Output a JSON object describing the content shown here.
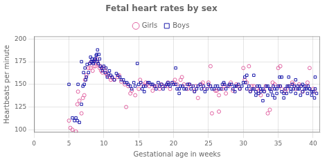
{
  "chart_data": {
    "type": "scatter",
    "title": "Fetal heart rates by sex",
    "xlabel": "Gestational age in weeks",
    "ylabel": "Heartbeats per minute",
    "xlim": [
      0,
      41
    ],
    "ylim": [
      97,
      203
    ],
    "xticks": [
      0,
      5,
      10,
      15,
      20,
      25,
      30,
      35,
      40
    ],
    "yticks": [
      100,
      125,
      150,
      175,
      200
    ],
    "grid": true,
    "legend": "top",
    "series": [
      {
        "name": "Boys",
        "color": "#1a1aaa",
        "marker": "square",
        "values": [
          [
            5.0,
            150
          ],
          [
            5.5,
            113
          ],
          [
            5.8,
            110
          ],
          [
            6.0,
            113
          ],
          [
            6.2,
            110
          ],
          [
            6.5,
            108
          ],
          [
            6.8,
            128
          ],
          [
            7.0,
            148
          ],
          [
            7.2,
            150
          ],
          [
            7.4,
            155
          ],
          [
            7.5,
            158
          ],
          [
            7.8,
            163
          ],
          [
            8.0,
            173
          ],
          [
            8.2,
            175
          ],
          [
            8.3,
            178
          ],
          [
            8.4,
            175
          ],
          [
            8.5,
            173
          ],
          [
            8.7,
            178
          ],
          [
            8.8,
            178
          ],
          [
            8.9,
            182
          ],
          [
            9.0,
            183
          ],
          [
            9.1,
            188
          ],
          [
            9.2,
            173
          ],
          [
            9.3,
            183
          ],
          [
            9.5,
            170
          ],
          [
            9.8,
            165
          ],
          [
            10.0,
            170
          ],
          [
            10.2,
            163
          ],
          [
            10.5,
            158
          ],
          [
            10.8,
            165
          ],
          [
            11.0,
            160
          ],
          [
            11.5,
            155
          ],
          [
            12.0,
            160
          ],
          [
            12.5,
            155
          ],
          [
            13.0,
            152
          ],
          [
            13.5,
            150
          ],
          [
            14.0,
            145
          ],
          [
            14.5,
            148
          ],
          [
            14.8,
            173
          ],
          [
            15.0,
            150
          ],
          [
            15.5,
            145
          ],
          [
            15.8,
            142
          ],
          [
            16.0,
            148
          ],
          [
            16.5,
            152
          ],
          [
            17.0,
            150
          ],
          [
            17.5,
            145
          ],
          [
            18.0,
            148
          ],
          [
            18.5,
            145
          ],
          [
            19.0,
            150
          ],
          [
            19.2,
            152
          ],
          [
            19.5,
            148
          ],
          [
            20.0,
            150
          ],
          [
            20.3,
            168
          ],
          [
            20.5,
            145
          ],
          [
            20.8,
            140
          ],
          [
            21.0,
            148
          ],
          [
            21.5,
            145
          ],
          [
            22.0,
            150
          ],
          [
            22.5,
            145
          ],
          [
            23.0,
            142
          ],
          [
            23.5,
            148
          ],
          [
            24.0,
            145
          ],
          [
            24.5,
            142
          ],
          [
            25.0,
            150
          ],
          [
            25.5,
            145
          ],
          [
            26.0,
            148
          ],
          [
            26.5,
            145
          ],
          [
            27.0,
            150
          ],
          [
            27.2,
            152
          ],
          [
            27.5,
            145
          ],
          [
            28.0,
            150
          ],
          [
            28.5,
            145
          ],
          [
            28.8,
            142
          ],
          [
            29.0,
            148
          ],
          [
            29.5,
            145
          ],
          [
            30.0,
            152
          ],
          [
            30.2,
            158
          ],
          [
            30.5,
            145
          ],
          [
            31.0,
            142
          ],
          [
            31.5,
            145
          ],
          [
            31.8,
            138
          ],
          [
            32.0,
            148
          ],
          [
            32.2,
            140
          ],
          [
            32.5,
            145
          ],
          [
            32.8,
            132
          ],
          [
            33.0,
            142
          ],
          [
            33.5,
            148
          ],
          [
            33.8,
            145
          ],
          [
            34.0,
            142
          ],
          [
            34.2,
            138
          ],
          [
            34.5,
            145
          ],
          [
            34.8,
            140
          ],
          [
            35.0,
            148
          ],
          [
            35.2,
            158
          ],
          [
            35.5,
            142
          ],
          [
            35.8,
            135
          ],
          [
            36.0,
            145
          ],
          [
            36.2,
            140
          ],
          [
            36.5,
            148
          ],
          [
            36.8,
            142
          ],
          [
            37.0,
            150
          ],
          [
            37.2,
            145
          ],
          [
            37.5,
            140
          ],
          [
            37.8,
            148
          ],
          [
            38.0,
            145
          ],
          [
            38.2,
            138
          ],
          [
            38.5,
            142
          ],
          [
            38.8,
            148
          ],
          [
            39.0,
            145
          ],
          [
            39.2,
            140
          ],
          [
            39.5,
            145
          ],
          [
            39.8,
            138
          ],
          [
            40.0,
            142
          ],
          [
            40.2,
            135
          ],
          [
            40.3,
            158
          ],
          [
            6.3,
            150
          ],
          [
            6.8,
            175
          ],
          [
            7.1,
            163
          ],
          [
            7.3,
            168
          ],
          [
            7.6,
            172
          ],
          [
            8.1,
            180
          ],
          [
            8.6,
            175
          ],
          [
            9.1,
            175
          ],
          [
            9.4,
            178
          ],
          [
            9.7,
            168
          ],
          [
            10.3,
            168
          ],
          [
            10.7,
            162
          ],
          [
            11.2,
            158
          ],
          [
            11.8,
            162
          ],
          [
            12.3,
            158
          ],
          [
            12.8,
            155
          ],
          [
            13.3,
            152
          ],
          [
            13.8,
            148
          ],
          [
            14.3,
            152
          ],
          [
            15.3,
            152
          ],
          [
            15.7,
            148
          ],
          [
            16.3,
            152
          ],
          [
            16.8,
            150
          ],
          [
            17.3,
            148
          ],
          [
            17.8,
            152
          ],
          [
            18.3,
            150
          ],
          [
            18.8,
            148
          ],
          [
            19.3,
            150
          ],
          [
            19.8,
            152
          ],
          [
            20.3,
            150
          ],
          [
            20.8,
            145
          ],
          [
            21.3,
            148
          ],
          [
            21.8,
            145
          ],
          [
            22.3,
            150
          ],
          [
            22.8,
            148
          ],
          [
            23.3,
            145
          ],
          [
            23.8,
            150
          ],
          [
            24.3,
            148
          ],
          [
            24.8,
            145
          ],
          [
            25.3,
            148
          ],
          [
            25.8,
            145
          ],
          [
            26.3,
            148
          ],
          [
            26.8,
            145
          ],
          [
            27.3,
            150
          ],
          [
            27.8,
            148
          ],
          [
            28.3,
            150
          ],
          [
            28.8,
            148
          ],
          [
            29.3,
            150
          ],
          [
            29.8,
            148
          ],
          [
            30.3,
            152
          ],
          [
            30.8,
            148
          ],
          [
            31.3,
            145
          ],
          [
            31.8,
            142
          ],
          [
            32.3,
            148
          ],
          [
            32.8,
            145
          ],
          [
            33.3,
            148
          ],
          [
            33.8,
            145
          ],
          [
            34.3,
            148
          ],
          [
            34.8,
            145
          ],
          [
            35.3,
            148
          ],
          [
            35.8,
            140
          ],
          [
            36.3,
            148
          ],
          [
            36.8,
            145
          ],
          [
            37.3,
            148
          ],
          [
            37.8,
            145
          ],
          [
            38.3,
            148
          ],
          [
            38.8,
            145
          ],
          [
            39.3,
            148
          ],
          [
            39.8,
            142
          ],
          [
            40.3,
            145
          ],
          [
            30.5,
            160
          ],
          [
            31.5,
            160
          ],
          [
            32.5,
            142
          ],
          [
            33.5,
            138
          ],
          [
            34.5,
            135
          ],
          [
            35.5,
            158
          ],
          [
            36.5,
            158
          ],
          [
            37.5,
            155
          ],
          [
            38.5,
            150
          ],
          [
            39.5,
            145
          ],
          [
            40.5,
            140
          ]
        ]
      },
      {
        "name": "Girls",
        "color": "#e060a0",
        "marker": "circle",
        "values": [
          [
            5.2,
            102
          ],
          [
            5.5,
            100
          ],
          [
            6.0,
            98
          ],
          [
            6.2,
            128
          ],
          [
            6.5,
            132
          ],
          [
            6.8,
            118
          ],
          [
            7.0,
            135
          ],
          [
            7.2,
            138
          ],
          [
            7.5,
            160
          ],
          [
            7.8,
            168
          ],
          [
            8.0,
            173
          ],
          [
            8.2,
            175
          ],
          [
            8.4,
            165
          ],
          [
            8.6,
            170
          ],
          [
            8.8,
            170
          ],
          [
            9.0,
            178
          ],
          [
            9.2,
            172
          ],
          [
            9.4,
            168
          ],
          [
            9.6,
            165
          ],
          [
            9.8,
            163
          ],
          [
            10.0,
            168
          ],
          [
            10.2,
            165
          ],
          [
            10.5,
            160
          ],
          [
            10.8,
            158
          ],
          [
            11.0,
            155
          ],
          [
            11.5,
            155
          ],
          [
            12.0,
            158
          ],
          [
            12.5,
            153
          ],
          [
            13.0,
            150
          ],
          [
            13.2,
            125
          ],
          [
            13.5,
            148
          ],
          [
            14.0,
            143
          ],
          [
            14.5,
            138
          ],
          [
            15.0,
            145
          ],
          [
            15.5,
            150
          ],
          [
            16.0,
            152
          ],
          [
            16.5,
            148
          ],
          [
            17.0,
            143
          ],
          [
            17.5,
            148
          ],
          [
            18.0,
            145
          ],
          [
            18.5,
            148
          ],
          [
            19.0,
            148
          ],
          [
            19.5,
            145
          ],
          [
            20.0,
            152
          ],
          [
            20.5,
            150
          ],
          [
            21.0,
            155
          ],
          [
            21.5,
            150
          ],
          [
            22.0,
            145
          ],
          [
            22.5,
            148
          ],
          [
            23.0,
            143
          ],
          [
            23.5,
            135
          ],
          [
            24.0,
            150
          ],
          [
            24.5,
            145
          ],
          [
            25.0,
            152
          ],
          [
            25.5,
            118
          ],
          [
            26.0,
            143
          ],
          [
            26.5,
            138
          ],
          [
            27.0,
            145
          ],
          [
            27.5,
            140
          ],
          [
            28.0,
            148
          ],
          [
            28.5,
            143
          ],
          [
            29.0,
            150
          ],
          [
            29.5,
            145
          ],
          [
            30.0,
            168
          ],
          [
            30.5,
            152
          ],
          [
            31.0,
            143
          ],
          [
            31.5,
            148
          ],
          [
            32.0,
            145
          ],
          [
            32.5,
            138
          ],
          [
            33.0,
            143
          ],
          [
            33.5,
            118
          ],
          [
            34.0,
            145
          ],
          [
            34.5,
            150
          ],
          [
            35.0,
            168
          ],
          [
            35.5,
            145
          ],
          [
            36.0,
            142
          ],
          [
            36.5,
            148
          ],
          [
            37.0,
            152
          ],
          [
            37.5,
            145
          ],
          [
            38.0,
            150
          ],
          [
            38.5,
            142
          ],
          [
            39.0,
            148
          ],
          [
            39.5,
            168
          ],
          [
            40.0,
            145
          ],
          [
            40.2,
            142
          ],
          [
            5.0,
            110
          ],
          [
            6.3,
            142
          ],
          [
            7.3,
            155
          ],
          [
            8.1,
            168
          ],
          [
            8.9,
            175
          ],
          [
            9.5,
            170
          ],
          [
            10.3,
            162
          ],
          [
            11.2,
            157
          ],
          [
            12.2,
            160
          ],
          [
            13.8,
            140
          ],
          [
            15.2,
            155
          ],
          [
            16.2,
            150
          ],
          [
            17.2,
            148
          ],
          [
            18.2,
            150
          ],
          [
            19.2,
            152
          ],
          [
            20.2,
            155
          ],
          [
            21.2,
            158
          ],
          [
            22.2,
            150
          ],
          [
            23.2,
            148
          ],
          [
            24.2,
            152
          ],
          [
            25.2,
            148
          ],
          [
            26.2,
            143
          ],
          [
            27.2,
            148
          ],
          [
            28.2,
            152
          ],
          [
            29.2,
            148
          ],
          [
            30.2,
            155
          ],
          [
            31.2,
            148
          ],
          [
            32.2,
            143
          ],
          [
            33.2,
            148
          ],
          [
            34.2,
            152
          ],
          [
            35.2,
            148
          ],
          [
            36.2,
            145
          ],
          [
            37.2,
            150
          ],
          [
            38.2,
            148
          ],
          [
            39.2,
            152
          ],
          [
            25.3,
            170
          ],
          [
            30.8,
            170
          ],
          [
            35.3,
            170
          ],
          [
            26.5,
            120
          ],
          [
            33.8,
            122
          ]
        ]
      }
    ]
  }
}
